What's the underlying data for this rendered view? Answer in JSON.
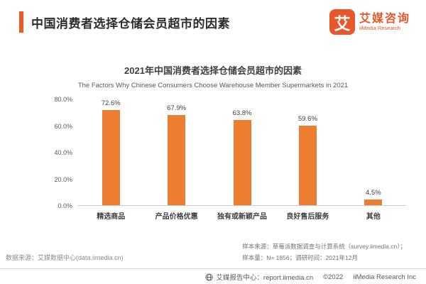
{
  "header": {
    "title": "中国消费者选择仓储会员超市的因素",
    "logo": {
      "mark": "艾",
      "name_cn": "艾媒咨询",
      "name_en": "iiMedia Research"
    }
  },
  "chart_data": {
    "type": "bar",
    "title": "2021年中国消费者选择仓储会员超市的因素",
    "subtitle": "The Factors Why Chinese Consumers Choose Warehouse Member Supermarkets in 2021",
    "categories": [
      "精选商品",
      "产品价格优惠",
      "独有或新颖产品",
      "良好售后服务",
      "其他"
    ],
    "values": [
      72.6,
      67.9,
      63.8,
      59.6,
      4.5
    ],
    "value_labels": [
      "72.6%",
      "67.9%",
      "63.8%",
      "59.6%",
      "4.5%"
    ],
    "xlabel": "",
    "ylabel": "",
    "yticks": [
      0,
      20,
      40,
      60,
      80
    ],
    "ytick_labels": [
      "0.0%",
      "20.0%",
      "40.0%",
      "60.0%",
      "80.0%"
    ],
    "ylim": [
      0,
      80
    ],
    "grid": false,
    "legend": "none",
    "bar_color": "#ED7D31"
  },
  "notes": {
    "data_source": "数据来源：艾媒数据中心(data.iimedia.cn)",
    "sample_source": "样本来源：草莓派数据调查与计算系统（survey.iimedia.cn）；",
    "sample_size": "样本量：N= 1856；调研时间：2021年12月"
  },
  "footer": {
    "report_center": "艾媒报告中心：report.iimedia.cn",
    "copyright": "©2022",
    "company": "iiMedia Research Inc"
  },
  "colors": {
    "accent": "#F2571F",
    "logo": "#E7572A",
    "bar": "#ED7D31"
  }
}
